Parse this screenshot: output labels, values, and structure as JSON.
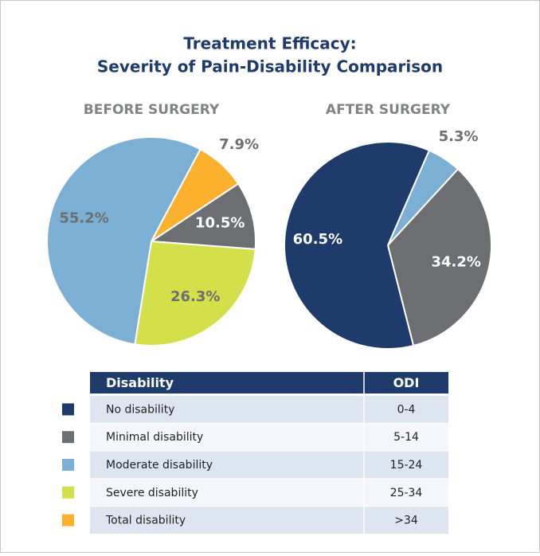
{
  "title": [
    "Treatment Efficacy:",
    "Severity of Pain-Disability Comparison"
  ],
  "chart_data": [
    {
      "type": "pie",
      "title": "BEFORE SURGERY",
      "categories": [
        "Total disability",
        "Minimal disability",
        "Severe disability",
        "Moderate disability"
      ],
      "values": [
        7.9,
        10.5,
        26.3,
        55.2
      ],
      "value_labels": [
        "7.9%",
        "10.5%",
        "26.3%",
        "55.2%"
      ],
      "colors": [
        "#fbb12d",
        "#6d6e71",
        "#d4e04a",
        "#7bafd4"
      ]
    },
    {
      "type": "pie",
      "title": "AFTER SURGERY",
      "categories": [
        "Moderate disability",
        "Minimal disability",
        "No disability"
      ],
      "values": [
        5.3,
        34.2,
        60.5
      ],
      "value_labels": [
        "5.3%",
        "34.2%",
        "60.5%"
      ],
      "colors": [
        "#7bafd4",
        "#6d6e71",
        "#1f3b6b"
      ]
    }
  ],
  "legend": {
    "header": [
      "Disability",
      "ODI"
    ],
    "rows": [
      {
        "label": "No disability",
        "odi": "0-4",
        "color": "#1f3b6b"
      },
      {
        "label": "Minimal disability",
        "odi": "5-14",
        "color": "#6d6e71"
      },
      {
        "label": "Moderate disability",
        "odi": "15-24",
        "color": "#7bafd4"
      },
      {
        "label": "Severe disability",
        "odi": "25-34",
        "color": "#d4e04a"
      },
      {
        "label": "Total disability",
        "odi": ">34",
        "color": "#fbb12d"
      }
    ]
  }
}
